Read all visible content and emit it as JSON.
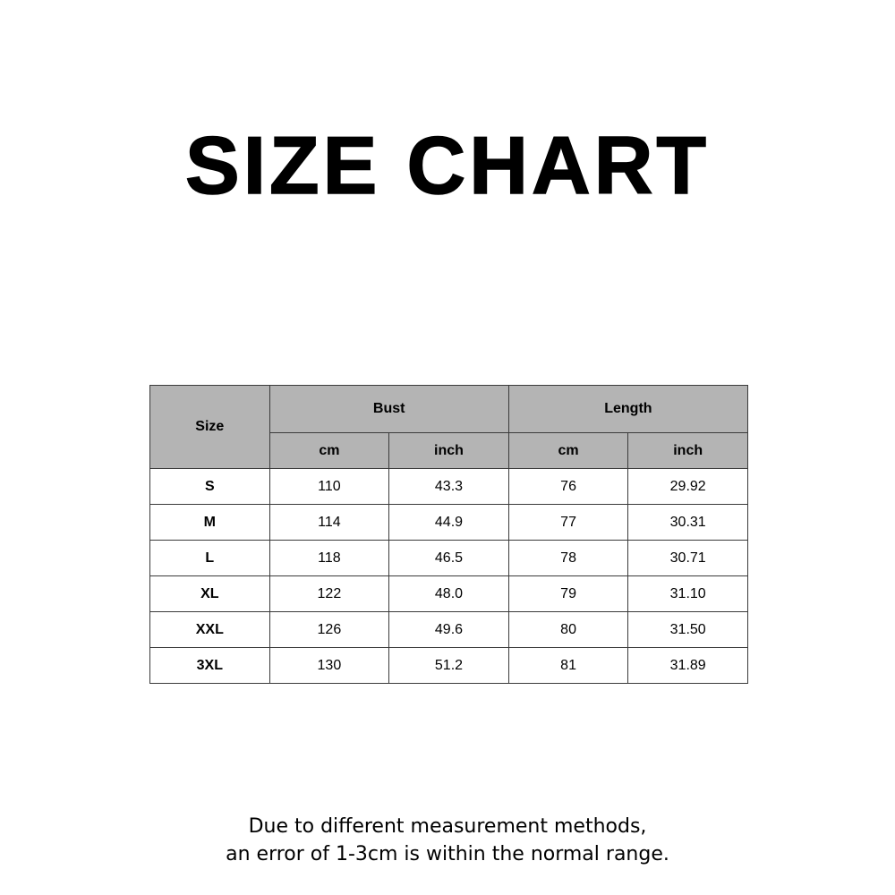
{
  "title": "SIZE CHART",
  "table": {
    "size_header": "Size",
    "groups": [
      "Bust",
      "Length"
    ],
    "units": [
      "cm",
      "inch",
      "cm",
      "inch"
    ],
    "rows": [
      [
        "S",
        "110",
        "43.3",
        "76",
        "29.92"
      ],
      [
        "M",
        "114",
        "44.9",
        "77",
        "30.31"
      ],
      [
        "L",
        "118",
        "46.5",
        "78",
        "30.71"
      ],
      [
        "XL",
        "122",
        "48.0",
        "79",
        "31.10"
      ],
      [
        "XXL",
        "126",
        "49.6",
        "80",
        "31.50"
      ],
      [
        "3XL",
        "130",
        "51.2",
        "81",
        "31.89"
      ]
    ],
    "header_bg": "#b4b4b4"
  },
  "note": {
    "line1": "Due to different measurement methods,",
    "line2": "an error of 1-3cm is within the normal range."
  }
}
